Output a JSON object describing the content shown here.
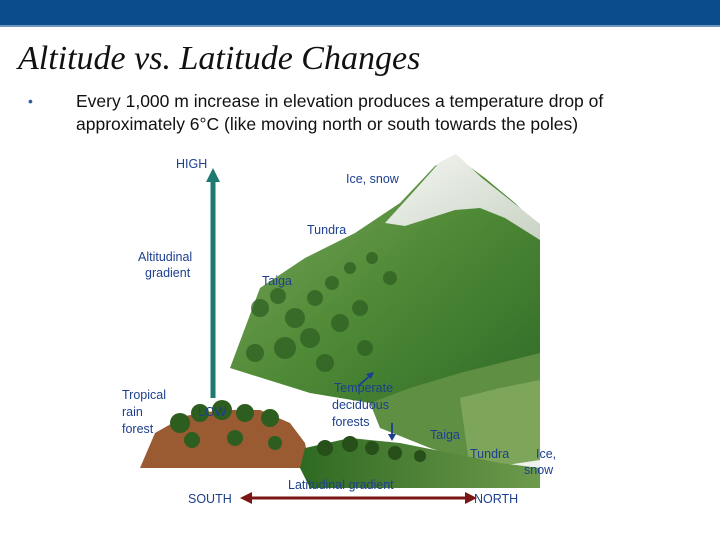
{
  "slide": {
    "title": "Altitude vs. Latitude Changes",
    "bullet": "Every 1,000 m increase in elevation produces a temperature drop of approximately 6°C (like moving north or south towards the poles)"
  },
  "diagram": {
    "labels": {
      "high": "HIGH",
      "low": "LOW",
      "south": "SOUTH",
      "north": "NORTH",
      "altitudinal_gradient_1": "Altitudinal",
      "altitudinal_gradient_2": "gradient",
      "latitudinal_gradient": "Latitudinal gradient",
      "ice_snow_top": "Ice, snow",
      "tundra_upper": "Tundra",
      "taiga_upper": "Taiga",
      "tropical_1": "Tropical",
      "tropical_2": "rain",
      "tropical_3": "forest",
      "temperate_1": "Temperate",
      "temperate_2": "deciduous",
      "temperate_3": "forests",
      "taiga_lower": "Taiga",
      "tundra_lower": "Tundra",
      "ice_lower_1": "Ice,",
      "ice_lower_2": "snow"
    },
    "colors": {
      "altitude_arrow": "#1e7a70",
      "latitude_arrow": "#7a1616",
      "brown_ground": "#9a5a32",
      "forest_green": "#3f7a2e",
      "snow": "#eef2ee"
    }
  }
}
